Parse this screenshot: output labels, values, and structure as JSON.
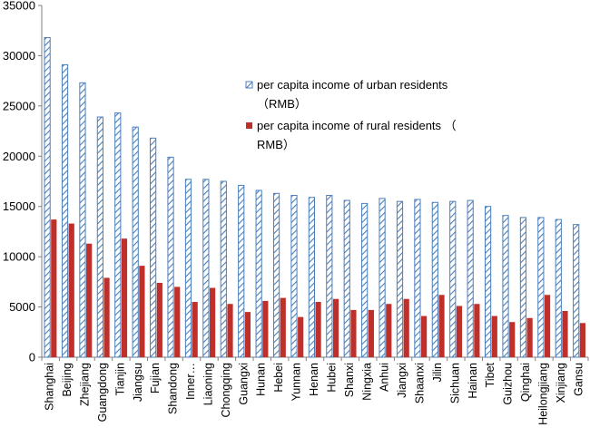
{
  "chart_data": {
    "type": "bar",
    "title": "",
    "xlabel": "",
    "ylabel": "",
    "ylim": [
      0,
      35000
    ],
    "yticks": [
      "0",
      "5000",
      "10000",
      "15000",
      "20000",
      "25000",
      "30000",
      "35000"
    ],
    "categories": [
      "Shanghai",
      "Beijing",
      "Zhejiang",
      "Guangdong",
      "Tianjin",
      "Jiangsu",
      "Fujian",
      "Shandong",
      "Inner…",
      "Liaoning",
      "Chongqing",
      "Guangxi",
      "Hunan",
      "Hebei",
      "Yunnan",
      "Henan",
      "Hubei",
      "Shanxi",
      "Ningxia",
      "Anhui",
      "Jiangxi",
      "Shaanxi",
      "Jilin",
      "Sichuan",
      "Hainan",
      "Tibet",
      "Guizhou",
      "Qinghai",
      "Heilongjiang",
      "Xinjiang",
      "Gansu"
    ],
    "series": [
      {
        "name": "per capita income of urban residents （RMB）",
        "legend_lines": [
          "per capita income of urban residents",
          "（RMB）"
        ],
        "color": "#4a7ebb",
        "pattern": "diagonal-hatch",
        "values": [
          31800,
          29100,
          27300,
          23900,
          24300,
          22900,
          21800,
          19900,
          17700,
          17700,
          17500,
          17100,
          16600,
          16300,
          16100,
          15900,
          16100,
          15600,
          15300,
          15800,
          15500,
          15700,
          15400,
          15500,
          15600,
          15000,
          14100,
          13900,
          13900,
          13700,
          13200
        ]
      },
      {
        "name": "per capita income of rural residents （RMB）",
        "legend_lines": [
          "per capita income of rural residents （",
          "RMB）"
        ],
        "color": "#c0302b",
        "pattern": "solid",
        "values": [
          13700,
          13300,
          11300,
          7900,
          11800,
          9100,
          7400,
          7000,
          5500,
          6900,
          5300,
          4500,
          5600,
          5900,
          4000,
          5500,
          5800,
          4700,
          4700,
          5300,
          5800,
          4100,
          6200,
          5100,
          5300,
          4100,
          3500,
          3900,
          6200,
          4600,
          3400
        ]
      }
    ],
    "grid": false,
    "legend_position": "upper-right"
  }
}
